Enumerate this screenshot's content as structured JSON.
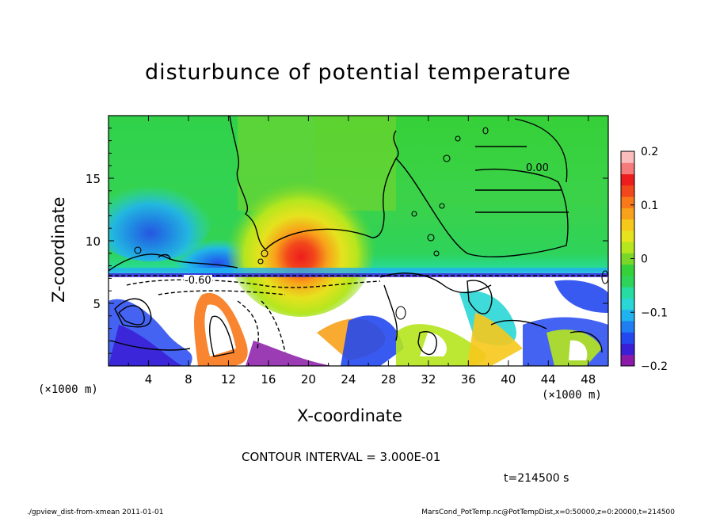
{
  "chart_data": {
    "type": "heatmap",
    "title": "disturbunce of potential temperature",
    "xlabel": "X-coordinate",
    "ylabel": "Z-coordinate",
    "x_unit_label": "(×1000 m)",
    "xlim": [
      0,
      50
    ],
    "ylim": [
      0,
      20
    ],
    "x_ticks": [
      "4",
      "8",
      "12",
      "16",
      "20",
      "24",
      "28",
      "32",
      "36",
      "40",
      "44",
      "48"
    ],
    "y_ticks": [
      "5",
      "10",
      "15"
    ],
    "colorbar": {
      "min": -0.2,
      "max": 0.2,
      "tick_labels": [
        "0.2",
        "0.1",
        "0",
        "−0.1",
        "−0.2"
      ],
      "tick_values": [
        0.2,
        0.1,
        0,
        -0.1,
        -0.2
      ],
      "colors": [
        "#8b1aa8",
        "#3a1fd6",
        "#2448f0",
        "#1e7ef2",
        "#21b3f0",
        "#2ad6d6",
        "#27dca0",
        "#2ed35a",
        "#35d138",
        "#7bd62a",
        "#b5e61e",
        "#e6e21e",
        "#f6c81c",
        "#f8a11a",
        "#f8781a",
        "#f2471c",
        "#ee1d1d",
        "#f57a7a",
        "#fbbcbc"
      ]
    },
    "contour_labels": [
      "-0.60",
      "0.00"
    ],
    "contour_interval_text": "CONTOUR INTERVAL = 3.000E-01",
    "time_text": "t=214500 s",
    "warm_anomaly_center": {
      "x": 19,
      "z": 8.5,
      "value": 0.17
    },
    "footer_left": "./gpview_dist-from-xmean  2011-01-01",
    "footer_right": "MarsCond_PotTemp.nc@PotTempDist,x=0:50000,z=0:20000,t=214500"
  }
}
